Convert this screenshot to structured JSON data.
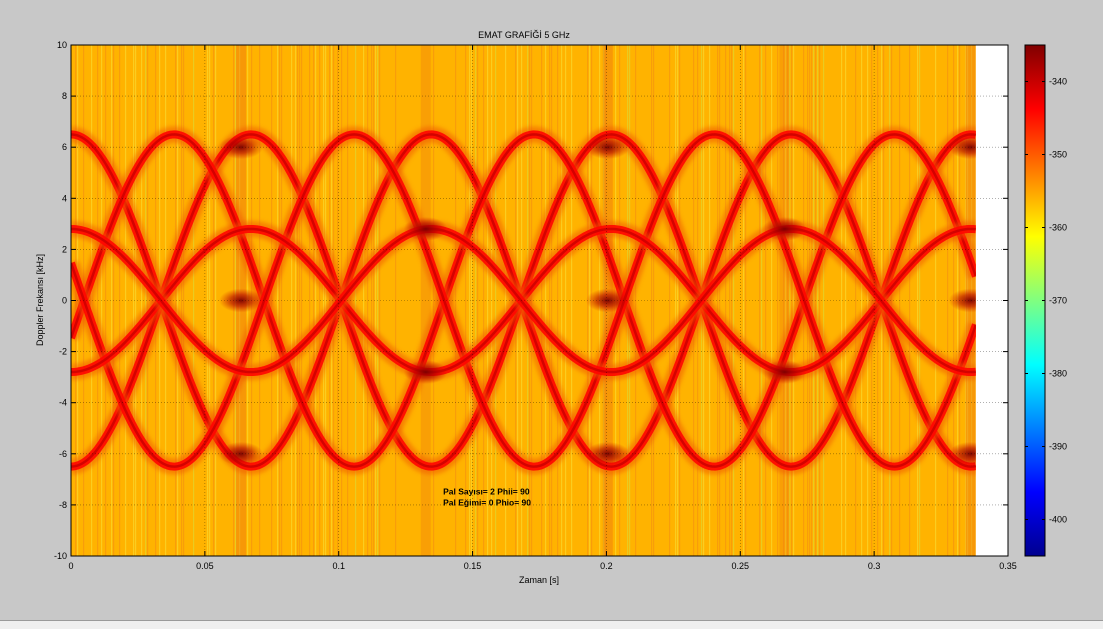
{
  "figure": {
    "background": "#c8c8c8"
  },
  "chart_data": {
    "type": "heatmap",
    "title": "EMAT GRAFİĞİ 5 GHz",
    "xlabel": "Zaman [s]",
    "ylabel": "Doppler Frekansı [kHz]",
    "xlim": [
      0,
      0.35
    ],
    "ylim": [
      -10,
      10
    ],
    "data_x_end": 0.338,
    "xticks": [
      0,
      0.05,
      0.1,
      0.15,
      0.2,
      0.25,
      0.3,
      0.35
    ],
    "xtick_labels": [
      "0",
      "0.05",
      "0.1",
      "0.15",
      "0.2",
      "0.25",
      "0.3",
      "0.35"
    ],
    "yticks": [
      -10,
      -8,
      -6,
      -4,
      -2,
      0,
      2,
      4,
      6,
      8,
      10
    ],
    "ytick_labels": [
      "-10",
      "-8",
      "-6",
      "-4",
      "-2",
      "0",
      "2",
      "4",
      "6",
      "8",
      "10"
    ],
    "grid": true,
    "colormap": "jet",
    "colorbar": {
      "range": [
        -405,
        -335
      ],
      "ticks": [
        -340,
        -350,
        -360,
        -370,
        -380,
        -390,
        -400
      ],
      "tick_labels": [
        "-340",
        "-350",
        "-360",
        "-370",
        "-380",
        "-390",
        "-400"
      ]
    },
    "background_level": -356,
    "curve_level": -344,
    "peak_level": -337,
    "period_s": 0.1345,
    "curves": [
      {
        "name": "A",
        "amplitude_khz": 6.5,
        "phase_s": 0.0
      },
      {
        "name": "B",
        "amplitude_khz": 6.5,
        "phase_s": 0.0385
      },
      {
        "name": "C",
        "amplitude_khz": 2.8,
        "phase_s": 0.0672
      }
    ],
    "hot_spots": [
      {
        "t": 0.0635,
        "f": 6.0
      },
      {
        "t": 0.0635,
        "f": 0.0
      },
      {
        "t": 0.0635,
        "f": -6.0
      },
      {
        "t": 0.1325,
        "f": 2.8
      },
      {
        "t": 0.1325,
        "f": -2.8
      },
      {
        "t": 0.2005,
        "f": 6.0
      },
      {
        "t": 0.2005,
        "f": 0.0
      },
      {
        "t": 0.2005,
        "f": -6.0
      },
      {
        "t": 0.2665,
        "f": 2.8
      },
      {
        "t": 0.2665,
        "f": -2.8
      },
      {
        "t": 0.336,
        "f": 6.0
      },
      {
        "t": 0.336,
        "f": 0.0
      },
      {
        "t": 0.336,
        "f": -6.0
      }
    ],
    "annotations": [
      "Pal Sayısı= 2 Phii= 90",
      "Pal Eğimi= 0 Phio= 90"
    ],
    "annotation_position": {
      "x": 0.139,
      "f": -7.6
    }
  }
}
